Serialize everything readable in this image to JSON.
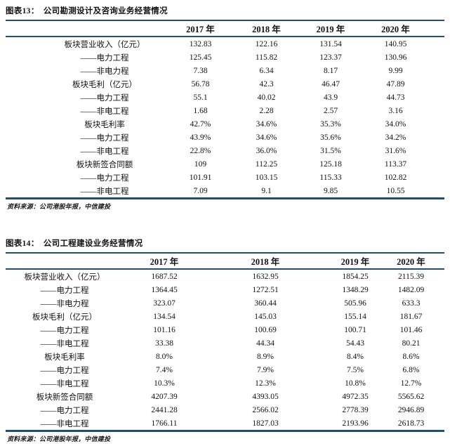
{
  "page": {
    "background_color": "#ffffff",
    "rule_color": "#1f4e79",
    "text_color": "#111111"
  },
  "tables": [
    {
      "title": "图表13：  公司勘测设计及咨询业务经营情况",
      "columns": [
        "2017 年",
        "2018 年",
        "2019 年",
        "2020 年"
      ],
      "rows": [
        {
          "label": "板块营业收入（亿元）",
          "values": [
            "132.83",
            "122.16",
            "131.54",
            "140.95"
          ]
        },
        {
          "label": "——电力工程",
          "values": [
            "125.45",
            "115.82",
            "123.37",
            "130.96"
          ]
        },
        {
          "label": "——非电力程",
          "values": [
            "7.38",
            "6.34",
            "8.17",
            "9.99"
          ]
        },
        {
          "label": "板块毛利（亿元）",
          "values": [
            "56.78",
            "42.3",
            "46.47",
            "47.89"
          ]
        },
        {
          "label": "——电力工程",
          "values": [
            "55.1",
            "40.02",
            "43.9",
            "44.73"
          ]
        },
        {
          "label": "——非电工程",
          "values": [
            "1.68",
            "2.28",
            "2.57",
            "3.16"
          ]
        },
        {
          "label": "板块毛利率",
          "values": [
            "42.7%",
            "34.6%",
            "35.3%",
            "34.0%"
          ]
        },
        {
          "label": "——电力工程",
          "values": [
            "43.9%",
            "34.6%",
            "35.6%",
            "34.2%"
          ]
        },
        {
          "label": "——非电工程",
          "values": [
            "22.8%",
            "36.0%",
            "31.5%",
            "31.6%"
          ]
        },
        {
          "label": "板块新签合同额",
          "values": [
            "109",
            "112.25",
            "125.18",
            "113.37"
          ]
        },
        {
          "label": "——电力工程",
          "values": [
            "101.91",
            "103.15",
            "115.33",
            "102.82"
          ]
        },
        {
          "label": "——非电工程",
          "values": [
            "7.09",
            "9.1",
            "9.85",
            "10.55"
          ]
        }
      ],
      "source": "资料来源：公司港股年报，中信建投"
    },
    {
      "title": "图表14：  公司工程建设业务经营情况",
      "columns": [
        "2017 年",
        "2018 年",
        "2019 年",
        "2020 年"
      ],
      "rows": [
        {
          "label": "板块营业收入（亿元）",
          "values": [
            "1687.52",
            "1632.95",
            "1854.25",
            "2115.39"
          ]
        },
        {
          "label": "——电力工程",
          "values": [
            "1364.45",
            "1272.51",
            "1348.29",
            "1482.09"
          ]
        },
        {
          "label": "——非电力程",
          "values": [
            "323.07",
            "360.44",
            "505.96",
            "633.3"
          ]
        },
        {
          "label": "板块毛利（亿元）",
          "values": [
            "134.54",
            "145.03",
            "155.14",
            "181.67"
          ]
        },
        {
          "label": "——电力工程",
          "values": [
            "101.16",
            "100.69",
            "100.71",
            "101.46"
          ]
        },
        {
          "label": "——非电工程",
          "values": [
            "33.38",
            "44.34",
            "54.43",
            "80.21"
          ]
        },
        {
          "label": "板块毛利率",
          "values": [
            "8.0%",
            "8.9%",
            "8.4%",
            "8.6%"
          ]
        },
        {
          "label": "——电力工程",
          "values": [
            "7.4%",
            "7.9%",
            "7.5%",
            "6.8%"
          ]
        },
        {
          "label": "——非电工程",
          "values": [
            "10.3%",
            "12.3%",
            "10.8%",
            "12.7%"
          ]
        },
        {
          "label": "板块新签合同额",
          "values": [
            "4207.39",
            "4393.05",
            "4972.35",
            "5565.62"
          ]
        },
        {
          "label": "——电力工程",
          "values": [
            "2441.28",
            "2566.02",
            "2778.39",
            "2946.89"
          ]
        },
        {
          "label": "——非电工程",
          "values": [
            "1766.11",
            "1827.03",
            "2193.96",
            "2618.73"
          ]
        }
      ],
      "source": "资料来源：公司港股年报，中信建投"
    }
  ]
}
